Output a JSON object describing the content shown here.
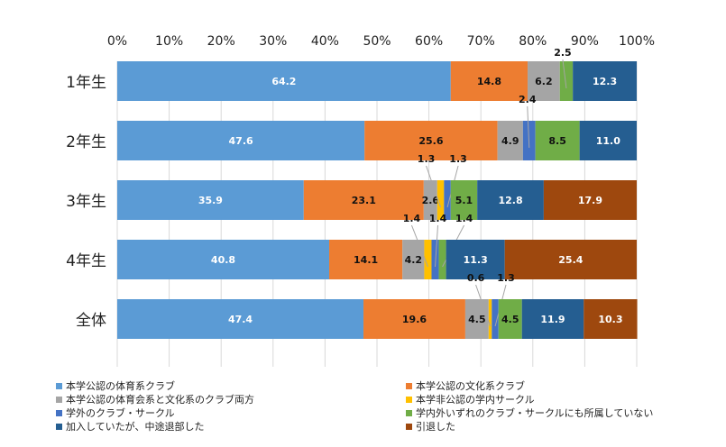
{
  "chart_data": {
    "type": "bar",
    "orientation": "horizontal",
    "stacked": "percent",
    "categories": [
      "1年生",
      "2年生",
      "3年生",
      "4年生",
      "全体"
    ],
    "x_ticks": [
      "0%",
      "10%",
      "20%",
      "30%",
      "40%",
      "50%",
      "60%",
      "70%",
      "80%",
      "90%",
      "100%"
    ],
    "xlim": [
      0,
      100
    ],
    "x_axis_position": "top",
    "legend_position": "bottom",
    "grid": true,
    "series": [
      {
        "name": "本学公認の体育系クラブ",
        "color": "#5b9bd5",
        "values": [
          64.2,
          47.6,
          35.9,
          40.8,
          47.4
        ]
      },
      {
        "name": "本学公認の文化系クラブ",
        "color": "#ed7d31",
        "values": [
          14.8,
          25.6,
          23.1,
          14.1,
          19.6
        ]
      },
      {
        "name": "本学公認の体育会系と文化系のクラブ両方",
        "color": "#a5a5a5",
        "values": [
          6.2,
          4.9,
          2.6,
          4.2,
          4.5
        ]
      },
      {
        "name": "本学非公認の学内サークル",
        "color": "#ffc000",
        "values": [
          0,
          0,
          1.3,
          1.4,
          0.6
        ]
      },
      {
        "name": "学外のクラブ・サークル",
        "color": "#4472c4",
        "values": [
          0,
          2.4,
          1.3,
          1.4,
          1.3
        ]
      },
      {
        "name": "学内外いずれのクラブ・サークルにも所属していない",
        "color": "#70ad47",
        "values": [
          2.5,
          8.5,
          5.1,
          1.4,
          4.5
        ]
      },
      {
        "name": "加入していたが、中途退部した",
        "color": "#255e91",
        "values": [
          12.3,
          11.0,
          12.8,
          11.3,
          11.9
        ]
      },
      {
        "name": "引退した",
        "color": "#9e480e",
        "values": [
          0,
          0,
          17.9,
          25.4,
          10.3
        ]
      }
    ],
    "data_labels": [
      [
        "64.2",
        "14.8",
        "6.2",
        "",
        "",
        "2.5",
        "12.3",
        ""
      ],
      [
        "47.6",
        "25.6",
        "4.9",
        "",
        "2.4",
        "8.5",
        "11.0",
        ""
      ],
      [
        "35.9",
        "23.1",
        "2.6",
        "1.3",
        "1.3",
        "5.1",
        "12.8",
        "17.9"
      ],
      [
        "40.8",
        "14.1",
        "4.2",
        "1.4",
        "1.4",
        "1.4",
        "11.3",
        "25.4"
      ],
      [
        "47.4",
        "19.6",
        "4.5",
        "0.6",
        "1.3",
        "4.5",
        "11.9",
        "10.3"
      ]
    ]
  }
}
